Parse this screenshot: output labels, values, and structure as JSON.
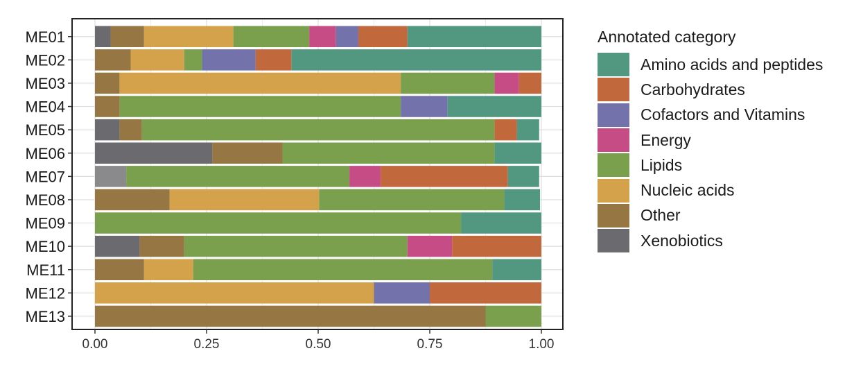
{
  "chart_data": {
    "type": "bar",
    "orientation": "horizontal",
    "stacked": true,
    "title": "",
    "xlabel": "",
    "ylabel": "",
    "xlim": [
      0,
      1
    ],
    "x_ticks": [
      "0.00",
      "0.25",
      "0.50",
      "0.75",
      "1.00"
    ],
    "categories": [
      "ME01",
      "ME02",
      "ME03",
      "ME04",
      "ME05",
      "ME06",
      "ME07",
      "ME08",
      "ME09",
      "ME10",
      "ME11",
      "ME12",
      "ME13"
    ],
    "legend_title": "Annotated category",
    "legend_position": "right",
    "grid": true,
    "stack_order": [
      "Xenobiotics",
      "Other",
      "Nucleic acids",
      "Lipids",
      "Energy",
      "Cofactors and Vitamins",
      "Carbohydrates",
      "Amino acids and peptides"
    ],
    "series": [
      {
        "name": "Amino acids and peptides",
        "color": "#529780",
        "values": [
          0.3,
          0.56,
          0.0,
          0.21,
          0.05,
          0.105,
          0.07,
          0.08,
          0.18,
          0.0,
          0.11,
          0.0,
          0.0
        ]
      },
      {
        "name": "Carbohydrates",
        "color": "#C1683C",
        "values": [
          0.11,
          0.08,
          0.05,
          0.0,
          0.05,
          0.0,
          0.285,
          0.0,
          0.0,
          0.2,
          0.0,
          0.25,
          0.0
        ]
      },
      {
        "name": "Cofactors and Vitamins",
        "color": "#7372AB",
        "values": [
          0.05,
          0.12,
          0.0,
          0.105,
          0.0,
          0.0,
          0.0,
          0.0,
          0.0,
          0.0,
          0.0,
          0.125,
          0.0
        ]
      },
      {
        "name": "Energy",
        "color": "#C64C85",
        "values": [
          0.06,
          0.0,
          0.055,
          0.0,
          0.0,
          0.0,
          0.07,
          0.0,
          0.0,
          0.1,
          0.0,
          0.0,
          0.0
        ]
      },
      {
        "name": "Lipids",
        "color": "#7AA04D",
        "values": [
          0.17,
          0.04,
          0.21,
          0.63,
          0.79,
          0.475,
          0.5,
          0.415,
          0.82,
          0.5,
          0.67,
          0.0,
          0.125
        ]
      },
      {
        "name": "Nucleic acids",
        "color": "#D3A24B",
        "values": [
          0.2,
          0.12,
          0.63,
          0.0,
          0.0,
          0.0,
          0.0,
          0.335,
          0.0,
          0.0,
          0.11,
          0.625,
          0.0
        ]
      },
      {
        "name": "Other",
        "color": "#967643",
        "values": [
          0.075,
          0.08,
          0.055,
          0.055,
          0.05,
          0.157,
          0.0,
          0.167,
          0.0,
          0.1,
          0.11,
          0.0,
          0.875
        ]
      },
      {
        "name": "Xenobiotics",
        "color": "#6B6B6F",
        "values": [
          0.035,
          0.0,
          0.0,
          0.0,
          0.055,
          0.263,
          0.07,
          0.0,
          0.0,
          0.1,
          0.0,
          0.0,
          0.0
        ],
        "value_colors": [
          "#6B6B6F",
          "#6B6B6F",
          "#6B6B6F",
          "#6B6B6F",
          "#6B6B6F",
          "#6B6B6F",
          "#8A8A8C",
          "#6B6B6F",
          "#6B6B6F",
          "#6B6B6F",
          "#6B6B6F",
          "#6B6B6F",
          "#6B6B6F"
        ]
      }
    ],
    "legend_order": [
      "Amino acids and peptides",
      "Carbohydrates",
      "Cofactors and Vitamins",
      "Energy",
      "Lipids",
      "Nucleic acids",
      "Other",
      "Xenobiotics"
    ]
  }
}
